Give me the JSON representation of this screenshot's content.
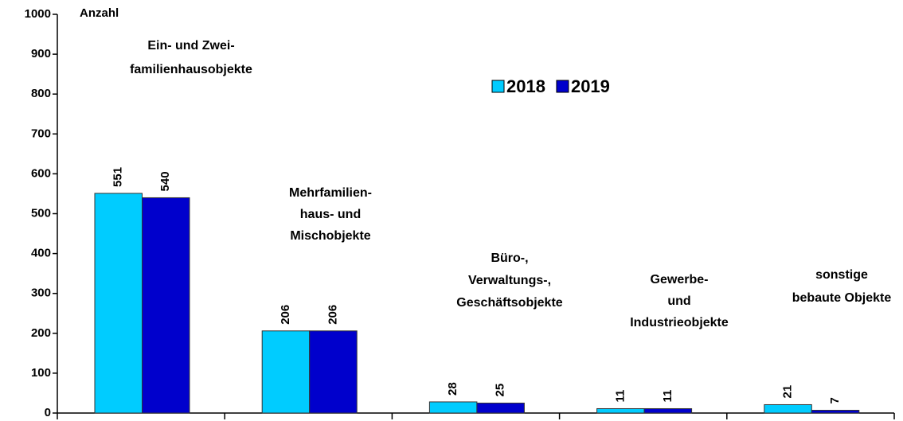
{
  "chart_data": {
    "type": "bar",
    "y_label": "Anzahl",
    "categories": [
      [
        "Ein- und Zwei-",
        "familienhausobjekte"
      ],
      [
        "Mehrfamilien-",
        "haus- und",
        "Mischobjekte"
      ],
      [
        "Büro-,",
        "Verwaltungs-,",
        "Geschäftsobjekte"
      ],
      [
        "Gewerbe-",
        "und",
        "Industrieobjekte"
      ],
      [
        "sonstige",
        "bebaute Objekte"
      ]
    ],
    "series": [
      {
        "name": "2018",
        "color": "#00ccff",
        "values": [
          551,
          206,
          28,
          11,
          21
        ]
      },
      {
        "name": "2019",
        "color": "#0000cc",
        "values": [
          540,
          206,
          25,
          11,
          7
        ]
      }
    ],
    "ylim": [
      0,
      1000
    ],
    "yticks": [
      0,
      100,
      200,
      300,
      400,
      500,
      600,
      700,
      800,
      900,
      1000
    ]
  }
}
